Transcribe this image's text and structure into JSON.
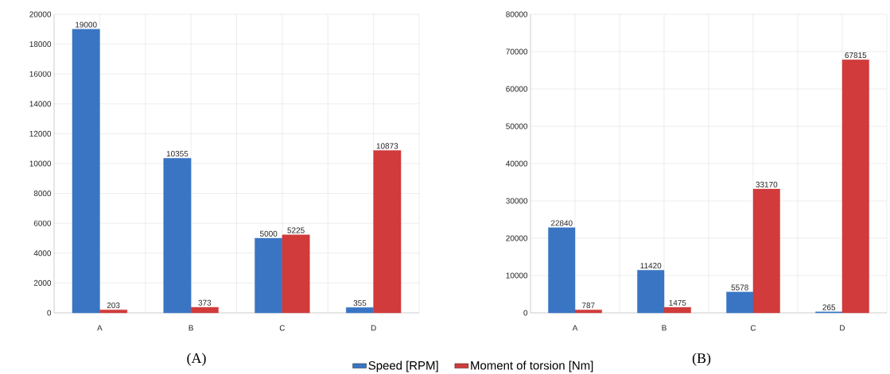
{
  "chart_data": [
    {
      "type": "bar",
      "categories": [
        "A",
        "B",
        "C",
        "D"
      ],
      "series": [
        {
          "name": "Speed [RPM]",
          "color": "#3a75c4",
          "values": [
            19000,
            10355,
            5000,
            355
          ]
        },
        {
          "name": "Moment of torsion [Nm]",
          "color": "#d13b3b",
          "values": [
            203,
            373,
            5225,
            10873
          ]
        }
      ],
      "ylim": [
        0,
        20000
      ],
      "yticks": [
        0,
        2000,
        4000,
        6000,
        8000,
        10000,
        12000,
        14000,
        16000,
        18000,
        20000
      ],
      "grid": true,
      "legend": "bottom",
      "data_labels": true,
      "annotations": [
        "(A)"
      ]
    },
    {
      "type": "bar",
      "categories": [
        "A",
        "B",
        "C",
        "D"
      ],
      "series": [
        {
          "color": "#3a75c4",
          "values": [
            22840,
            11420,
            5578,
            265
          ]
        },
        {
          "color": "#d13b3b",
          "values": [
            787,
            1475,
            33170,
            67815
          ]
        }
      ],
      "ylim": [
        0,
        80000
      ],
      "yticks": [
        0,
        10000,
        20000,
        30000,
        40000,
        50000,
        60000,
        70000,
        80000
      ],
      "grid": true,
      "data_labels": true,
      "annotations": [
        "(B)"
      ]
    }
  ]
}
